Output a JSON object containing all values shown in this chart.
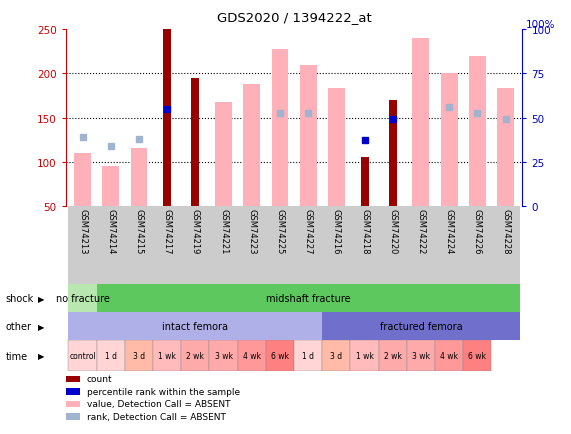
{
  "title": "GDS2020 / 1394222_at",
  "samples": [
    "GSM74213",
    "GSM74214",
    "GSM74215",
    "GSM74217",
    "GSM74219",
    "GSM74221",
    "GSM74223",
    "GSM74225",
    "GSM74227",
    "GSM74216",
    "GSM74218",
    "GSM74220",
    "GSM74222",
    "GSM74224",
    "GSM74226",
    "GSM74228"
  ],
  "bar_values_dark": [
    null,
    null,
    null,
    250,
    195,
    null,
    null,
    null,
    null,
    null,
    105,
    170,
    null,
    null,
    null,
    null
  ],
  "bar_values_light": [
    110,
    95,
    115,
    null,
    null,
    168,
    188,
    228,
    210,
    183,
    null,
    null,
    240,
    200,
    220,
    183
  ],
  "blue_squares_light": [
    128,
    118,
    126,
    null,
    null,
    null,
    null,
    155,
    155,
    null,
    null,
    null,
    null,
    162,
    155,
    148
  ],
  "blue_squares_dark": [
    null,
    null,
    null,
    160,
    null,
    null,
    null,
    null,
    null,
    null,
    124,
    148,
    null,
    null,
    null,
    null
  ],
  "ylim": [
    50,
    250
  ],
  "y_ticks_left": [
    50,
    100,
    150,
    200,
    250
  ],
  "y_ticks_right": [
    0,
    25,
    50,
    75,
    100
  ],
  "dotted_lines": [
    100,
    150,
    200
  ],
  "shock_groups": [
    {
      "label": "no fracture",
      "start": 0,
      "end": 1,
      "color": "#b8e8b0"
    },
    {
      "label": "midshaft fracture",
      "start": 1,
      "end": 16,
      "color": "#5dc85d"
    }
  ],
  "other_groups": [
    {
      "label": "intact femora",
      "start": 0,
      "end": 9,
      "color": "#b0b0e8"
    },
    {
      "label": "fractured femora",
      "start": 9,
      "end": 16,
      "color": "#7070cc"
    }
  ],
  "time_labels": [
    "control",
    "1 d",
    "3 d",
    "1 wk",
    "2 wk",
    "3 wk",
    "4 wk",
    "6 wk",
    "1 d",
    "3 d",
    "1 wk",
    "2 wk",
    "3 wk",
    "4 wk",
    "6 wk"
  ],
  "time_colors": [
    "#ffd5d5",
    "#ffd5d5",
    "#ffbba8",
    "#ffbbbb",
    "#ffaaaa",
    "#ffaaaa",
    "#ff9999",
    "#ff8080",
    "#ffd5d5",
    "#ffbba8",
    "#ffbbbb",
    "#ffaaaa",
    "#ffaaaa",
    "#ff9999",
    "#ff8080"
  ],
  "dark_red": "#990000",
  "light_pink": "#ffb0b8",
  "blue_dark": "#0000cc",
  "blue_light": "#a0b4d0",
  "bg_color": "#ffffff",
  "axis_color": "#cc0000",
  "right_axis_color": "#0000cc"
}
